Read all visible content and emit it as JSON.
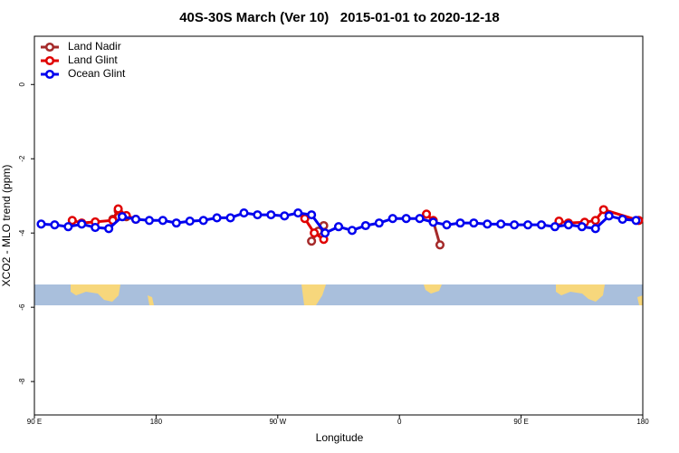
{
  "chart_data": {
    "type": "line",
    "title": "40S-30S March (Ver 10)   2015-01-01 to 2020-12-18",
    "xlabel": "Longitude",
    "ylabel": "XCO2 - MLO trend (ppm)",
    "xlim": [
      90,
      540
    ],
    "xticks": [
      {
        "value": 90,
        "label": "90 E"
      },
      180,
      {
        "value": 270,
        "label": "90 W"
      },
      {
        "value": 360,
        "label": "0"
      },
      {
        "value": 450,
        "label": "90 E"
      },
      {
        "value": 540,
        "label": "180"
      }
    ],
    "ylim": [
      -8.9,
      1.3
    ],
    "yticks": [
      0,
      -2,
      -4,
      -6,
      -8
    ],
    "legend": "top-left",
    "series": [
      {
        "name": "Land Nadir",
        "color": "#a52a2a",
        "x": [
          148,
          152,
          158,
          null,
          295,
          300,
          304,
          null,
          385,
          390
        ],
        "values": [
          -3.63,
          -3.4,
          -3.56,
          null,
          -4.22,
          -3.95,
          -3.8,
          null,
          -3.68,
          -4.32
        ]
      },
      {
        "name": "Land Glint",
        "color": "#e00000",
        "x": [
          118,
          125,
          135,
          148,
          152,
          158,
          165,
          null,
          290,
          297,
          304,
          null,
          380,
          385,
          null,
          478,
          485,
          497,
          505,
          511,
          537
        ],
        "values": [
          -3.66,
          -3.73,
          -3.7,
          -3.66,
          -3.35,
          -3.53,
          -3.63,
          null,
          -3.61,
          -4.0,
          -4.17,
          null,
          -3.49,
          -3.66,
          null,
          -3.68,
          -3.73,
          -3.71,
          -3.66,
          -3.37,
          -3.66
        ]
      },
      {
        "name": "Ocean Glint",
        "color": "#0000ee",
        "x": [
          95,
          105,
          115,
          125,
          135,
          145,
          155,
          165,
          175,
          185,
          195,
          205,
          215,
          225,
          235,
          245,
          255,
          265,
          275,
          285,
          295,
          305,
          315,
          325,
          335,
          345,
          355,
          365,
          375,
          385,
          395,
          405,
          415,
          425,
          435,
          445,
          455,
          465,
          475,
          485,
          495,
          505,
          515,
          525,
          535
        ],
        "values": [
          -3.76,
          -3.78,
          -3.83,
          -3.76,
          -3.85,
          -3.88,
          -3.56,
          -3.63,
          -3.66,
          -3.66,
          -3.73,
          -3.68,
          -3.66,
          -3.59,
          -3.59,
          -3.46,
          -3.51,
          -3.51,
          -3.54,
          -3.46,
          -3.51,
          -4.0,
          -3.83,
          -3.93,
          -3.8,
          -3.73,
          -3.61,
          -3.61,
          -3.61,
          -3.71,
          -3.78,
          -3.73,
          -3.73,
          -3.76,
          -3.76,
          -3.78,
          -3.78,
          -3.78,
          -3.83,
          -3.78,
          -3.83,
          -3.88,
          -3.54,
          -3.63,
          -3.66
        ]
      }
    ]
  }
}
